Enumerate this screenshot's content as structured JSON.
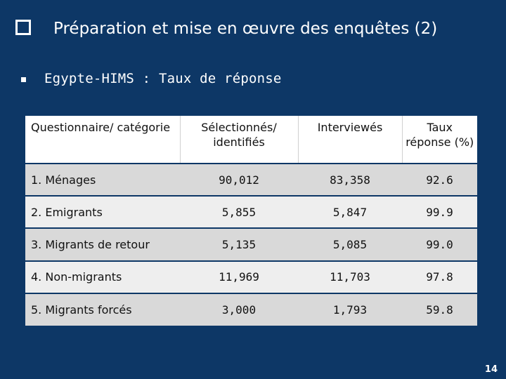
{
  "slide": {
    "title": "Préparation et mise en œuvre des enquêtes (2)",
    "subtitle": "Egypte-HIMS : Taux de réponse",
    "page_number": "14"
  },
  "table": {
    "headers": [
      "Questionnaire/ catégorie",
      "Sélectionnés/ identifiés",
      "Interviewés",
      "Taux réponse (%)"
    ],
    "rows": [
      [
        "1. Ménages",
        "90,012",
        "83,358",
        "92.6"
      ],
      [
        "2. Emigrants",
        "5,855",
        "5,847",
        "99.9"
      ],
      [
        "3. Migrants de retour",
        "5,135",
        "5,085",
        "99.0"
      ],
      [
        "4. Non-migrants",
        "11,969",
        "11,703",
        "97.8"
      ],
      [
        "5. Migrants forcés",
        "3,000",
        "1,793",
        "59.8"
      ]
    ]
  }
}
